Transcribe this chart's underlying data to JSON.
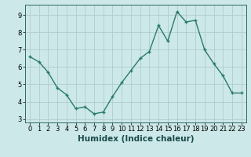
{
  "x": [
    0,
    1,
    2,
    3,
    4,
    5,
    6,
    7,
    8,
    9,
    10,
    11,
    12,
    13,
    14,
    15,
    16,
    17,
    18,
    19,
    20,
    21,
    22,
    23
  ],
  "y": [
    6.6,
    6.3,
    5.7,
    4.8,
    4.4,
    3.6,
    3.7,
    3.3,
    3.4,
    4.3,
    5.1,
    5.8,
    6.5,
    6.9,
    8.4,
    7.5,
    9.2,
    8.6,
    8.7,
    7.0,
    6.2,
    5.5,
    4.5,
    4.5
  ],
  "line_color": "#2a7a6e",
  "marker": "+",
  "marker_size": 3.5,
  "marker_edge_width": 1.0,
  "bg_color": "#cce8e8",
  "grid_color": "#b0cccc",
  "xlabel": "Humidex (Indice chaleur)",
  "ylim": [
    2.8,
    9.6
  ],
  "xlim": [
    -0.5,
    23.5
  ],
  "yticks": [
    3,
    4,
    5,
    6,
    7,
    8,
    9
  ],
  "xticks": [
    0,
    1,
    2,
    3,
    4,
    5,
    6,
    7,
    8,
    9,
    10,
    11,
    12,
    13,
    14,
    15,
    16,
    17,
    18,
    19,
    20,
    21,
    22,
    23
  ],
  "tick_fontsize": 6,
  "xlabel_fontsize": 7.5,
  "line_width": 1.0,
  "spine_color": "#336666"
}
